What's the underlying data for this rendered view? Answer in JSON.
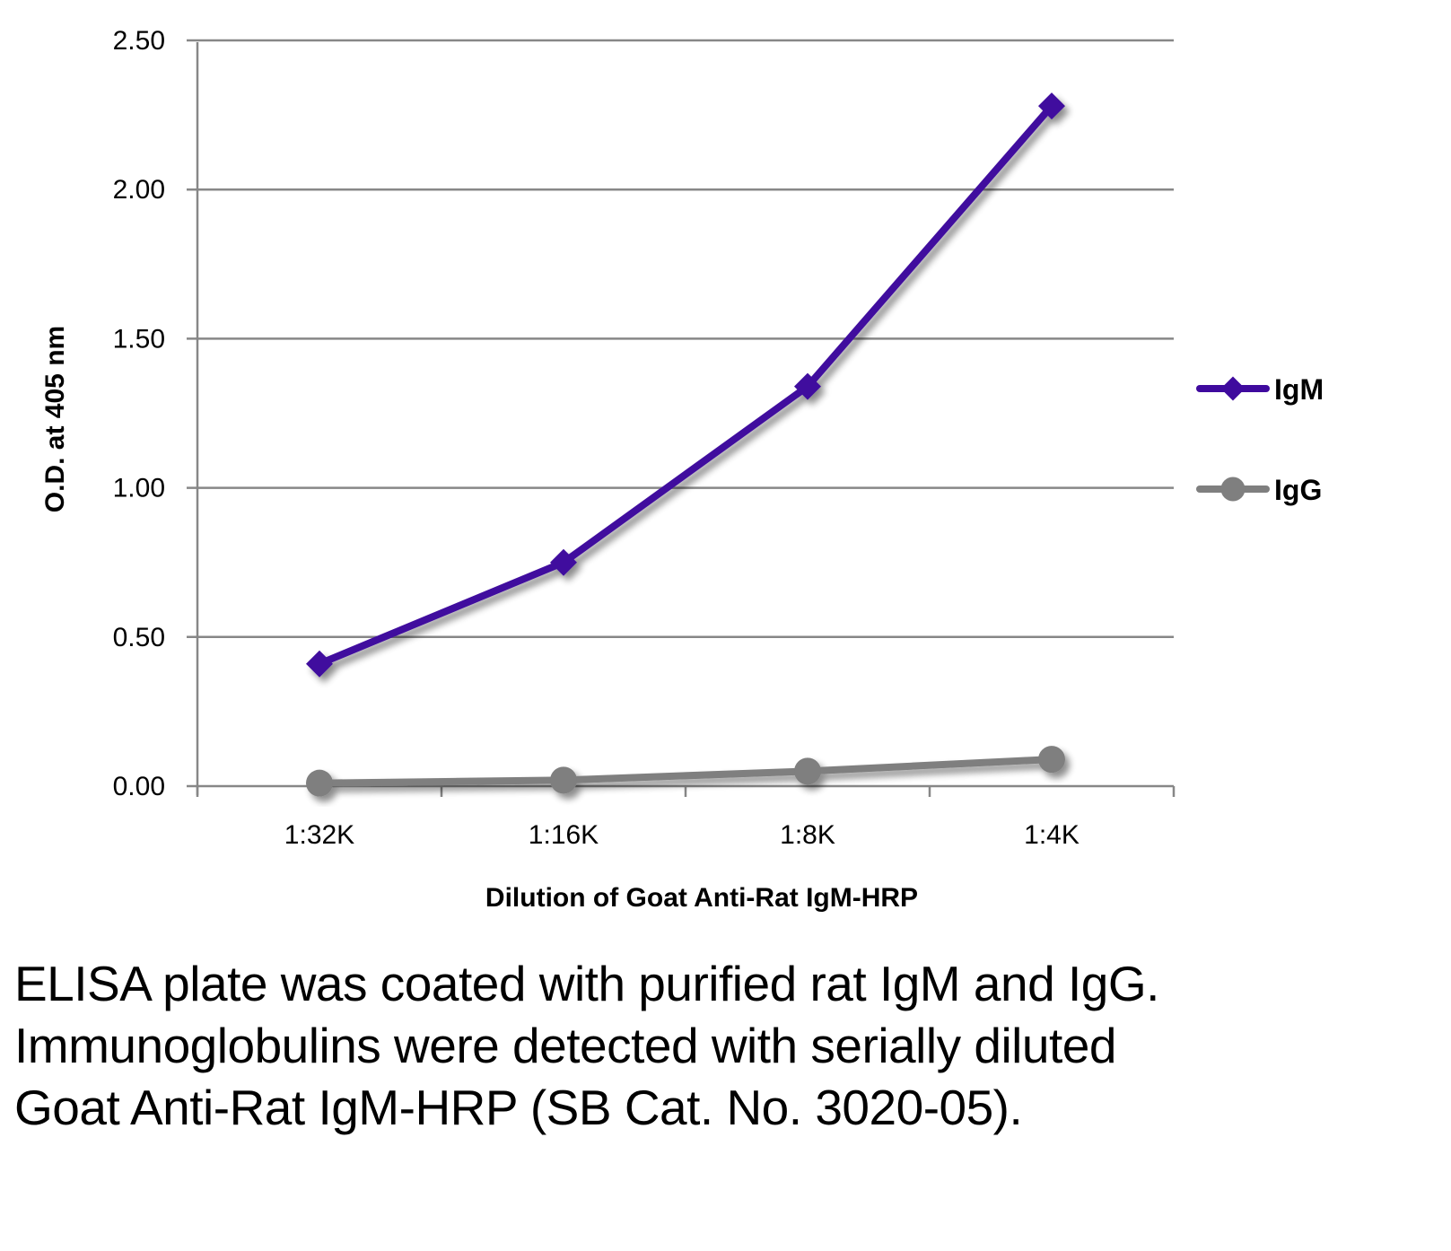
{
  "chart_data": {
    "type": "line",
    "title": "",
    "xlabel": "Dilution of Goat Anti-Rat IgM-HRP",
    "ylabel": "O.D. at 405 nm",
    "categories": [
      "1:32K",
      "1:16K",
      "1:8K",
      "1:4K"
    ],
    "ylim": [
      0,
      2.5
    ],
    "yticks": [
      0,
      0.5,
      1.0,
      1.5,
      2.0,
      2.5
    ],
    "ytick_labels": [
      "0.00",
      "0.50",
      "1.00",
      "1.50",
      "2.00",
      "2.50"
    ],
    "grid": true,
    "legend_position": "right",
    "series": [
      {
        "name": "IgM",
        "marker": "diamond",
        "color": "#3f0a9e",
        "values": [
          0.41,
          0.75,
          1.34,
          2.28
        ]
      },
      {
        "name": "IgG",
        "marker": "circle",
        "color": "#7f7f7f",
        "values": [
          0.01,
          0.02,
          0.05,
          0.09
        ]
      }
    ]
  },
  "caption": "ELISA plate was coated with purified rat IgM and IgG.  Immunoglobulins were detected with serially diluted Goat Anti-Rat IgM-HRP (SB Cat. No. 3020-05)."
}
